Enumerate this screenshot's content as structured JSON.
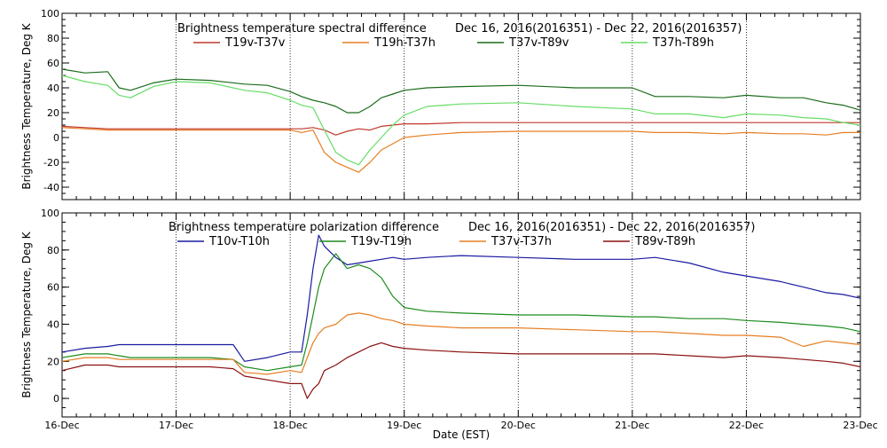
{
  "x_axis": {
    "label": "Date (EST)",
    "ticks": [
      "16-Dec",
      "17-Dec",
      "18-Dec",
      "19-Dec",
      "20-Dec",
      "21-Dec",
      "22-Dec",
      "23-Dec"
    ]
  },
  "chart_data": [
    {
      "type": "line",
      "title": "Brightness temperature spectral difference",
      "subtitle": "Dec 16, 2016(2016351) - Dec 22, 2016(2016357)",
      "xlabel": "",
      "ylabel": "Brightness Temperature, Deg K",
      "xlim": [
        0,
        7
      ],
      "ylim": [
        -50,
        100
      ],
      "yticks": [
        -40,
        -20,
        0,
        20,
        40,
        60,
        80,
        100
      ],
      "grid": "vertical dotted at day boundaries",
      "legend": "top, horizontal",
      "x": [
        0.0,
        0.2,
        0.4,
        0.5,
        0.6,
        0.8,
        1.0,
        1.3,
        1.6,
        1.8,
        2.0,
        2.1,
        2.2,
        2.3,
        2.4,
        2.5,
        2.6,
        2.7,
        2.8,
        2.9,
        3.0,
        3.2,
        3.5,
        4.0,
        4.5,
        5.0,
        5.2,
        5.5,
        5.8,
        6.0,
        6.3,
        6.5,
        6.7,
        6.85,
        7.0
      ],
      "series": [
        {
          "name": "T19v-T37v",
          "color": "#c0392b",
          "values": [
            9,
            8,
            7,
            7,
            7,
            7,
            7,
            7,
            7,
            7,
            7,
            7,
            8,
            6,
            2,
            5,
            7,
            6,
            9,
            10,
            11,
            11,
            12,
            12,
            12,
            12,
            12,
            12,
            12,
            12,
            12,
            12,
            12,
            12,
            12
          ]
        },
        {
          "name": "T19h-T37h",
          "color": "#e67e22",
          "values": [
            8,
            7,
            6,
            6,
            6,
            6,
            6,
            6,
            6,
            6,
            6,
            4,
            6,
            -12,
            -20,
            -24,
            -28,
            -20,
            -10,
            -5,
            0,
            2,
            4,
            5,
            5,
            5,
            4,
            4,
            3,
            4,
            3,
            3,
            2,
            4,
            4
          ]
        },
        {
          "name": "T37v-T89v",
          "color": "#1b6b1b",
          "values": [
            55,
            52,
            53,
            40,
            38,
            44,
            47,
            46,
            43,
            42,
            37,
            33,
            30,
            28,
            25,
            20,
            20,
            25,
            32,
            35,
            38,
            40,
            41,
            42,
            40,
            40,
            33,
            33,
            32,
            34,
            32,
            32,
            28,
            26,
            22
          ]
        },
        {
          "name": "T37h-T89h",
          "color": "#66dd66",
          "values": [
            50,
            45,
            42,
            34,
            32,
            41,
            45,
            44,
            38,
            36,
            30,
            26,
            24,
            6,
            -12,
            -18,
            -22,
            -10,
            0,
            10,
            18,
            25,
            27,
            28,
            25,
            23,
            19,
            19,
            16,
            19,
            18,
            16,
            15,
            12,
            10
          ]
        }
      ]
    },
    {
      "type": "line",
      "title": "Brightness temperature polarization difference",
      "subtitle": "Dec 16, 2016(2016351) - Dec 22, 2016(2016357)",
      "xlabel": "Date (EST)",
      "ylabel": "Brightness Temperature, Deg K",
      "xlim": [
        0,
        7
      ],
      "ylim": [
        -10,
        100
      ],
      "yticks": [
        0,
        20,
        40,
        60,
        80,
        100
      ],
      "grid": "vertical dotted at day boundaries",
      "legend": "top, horizontal",
      "x": [
        0.0,
        0.2,
        0.4,
        0.5,
        0.6,
        0.8,
        1.0,
        1.3,
        1.5,
        1.6,
        1.8,
        2.0,
        2.1,
        2.15,
        2.2,
        2.25,
        2.3,
        2.4,
        2.5,
        2.6,
        2.7,
        2.8,
        2.9,
        3.0,
        3.2,
        3.5,
        4.0,
        4.5,
        5.0,
        5.2,
        5.5,
        5.8,
        6.0,
        6.3,
        6.5,
        6.7,
        6.85,
        7.0
      ],
      "series": [
        {
          "name": "T10v-T10h",
          "color": "#1a1aa0",
          "values": [
            25,
            27,
            28,
            29,
            29,
            29,
            29,
            29,
            29,
            20,
            22,
            25,
            25,
            45,
            70,
            88,
            82,
            76,
            72,
            73,
            74,
            75,
            76,
            75,
            76,
            77,
            76,
            75,
            75,
            76,
            73,
            68,
            66,
            63,
            60,
            57,
            56,
            54
          ]
        },
        {
          "name": "T19v-T19h",
          "color": "#1e8c1e",
          "values": [
            22,
            24,
            24,
            23,
            22,
            22,
            22,
            22,
            21,
            17,
            15,
            17,
            18,
            30,
            45,
            60,
            70,
            78,
            70,
            72,
            70,
            65,
            55,
            49,
            47,
            46,
            45,
            45,
            44,
            44,
            43,
            43,
            42,
            41,
            40,
            39,
            38,
            36
          ]
        },
        {
          "name": "T37v-T37h",
          "color": "#e67e22",
          "values": [
            20,
            22,
            22,
            21,
            21,
            21,
            21,
            21,
            21,
            14,
            13,
            15,
            14,
            22,
            30,
            35,
            38,
            40,
            45,
            46,
            45,
            43,
            42,
            40,
            39,
            38,
            38,
            37,
            36,
            36,
            35,
            34,
            34,
            33,
            28,
            31,
            30,
            29
          ]
        },
        {
          "name": "T89v-T89h",
          "color": "#8b1010",
          "values": [
            15,
            18,
            18,
            17,
            17,
            17,
            17,
            17,
            16,
            12,
            10,
            8,
            8,
            0,
            5,
            8,
            15,
            18,
            22,
            25,
            28,
            30,
            28,
            27,
            26,
            25,
            24,
            24,
            24,
            24,
            23,
            22,
            23,
            22,
            21,
            20,
            19,
            17
          ]
        }
      ]
    }
  ]
}
